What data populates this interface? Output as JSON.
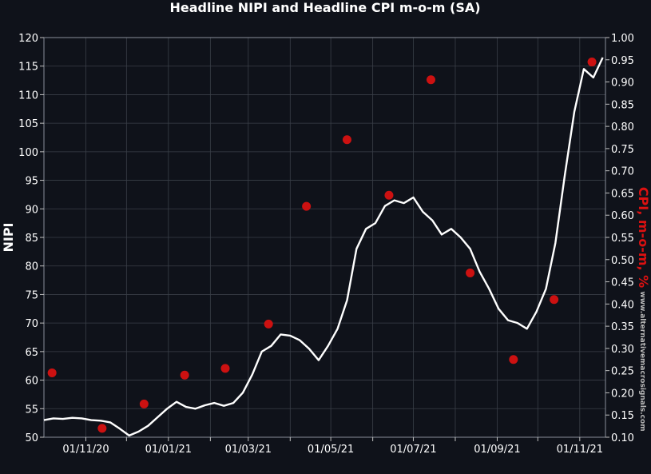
{
  "chart_data": {
    "type": "line",
    "title": "Headline NIPI and Headline CPI m-o-m (SA)",
    "ylabel_left": "NIPI",
    "ylabel_right": "CPI, m-o-m, %",
    "watermark": "www.alternativemacrosignals.com",
    "ylim_left": [
      50,
      120
    ],
    "ylim_right": [
      0.1,
      1.0
    ],
    "yticks_left": [
      "50",
      "55",
      "60",
      "65",
      "70",
      "75",
      "80",
      "85",
      "90",
      "95",
      "100",
      "105",
      "110",
      "115",
      "120"
    ],
    "yticks_right": [
      "0.10",
      "0.15",
      "0.20",
      "0.25",
      "0.30",
      "0.35",
      "0.40",
      "0.45",
      "0.50",
      "0.55",
      "0.60",
      "0.65",
      "0.70",
      "0.75",
      "0.80",
      "0.85",
      "0.90",
      "0.95",
      "1.00"
    ],
    "x_range": [
      "2020-10-01",
      "2021-11-20"
    ],
    "xticks": [
      {
        "date": "2020-11-01",
        "label": "01/11/20"
      },
      {
        "date": "2021-01-01",
        "label": "01/01/21"
      },
      {
        "date": "2021-03-01",
        "label": "01/03/21"
      },
      {
        "date": "2021-05-01",
        "label": "01/05/21"
      },
      {
        "date": "2021-07-01",
        "label": "01/07/21"
      },
      {
        "date": "2021-09-01",
        "label": "01/09/21"
      },
      {
        "date": "2021-11-01",
        "label": "01/11/21"
      }
    ],
    "grid": true,
    "colors": {
      "background": "#0f121a",
      "line": "#ffffff",
      "points": "#cc1111",
      "right_axis_label": "#dd1111",
      "grid": "#3a3f48"
    },
    "series": [
      {
        "type": "line",
        "axis": "left",
        "points": [
          [
            "2020-10-01",
            53.0
          ],
          [
            "2020-10-08",
            53.3
          ],
          [
            "2020-10-15",
            53.2
          ],
          [
            "2020-10-22",
            53.4
          ],
          [
            "2020-10-29",
            53.3
          ],
          [
            "2020-11-05",
            53.0
          ],
          [
            "2020-11-12",
            52.9
          ],
          [
            "2020-11-19",
            52.6
          ],
          [
            "2020-11-26",
            51.5
          ],
          [
            "2020-12-03",
            50.3
          ],
          [
            "2020-12-10",
            51.0
          ],
          [
            "2020-12-17",
            52.0
          ],
          [
            "2020-12-24",
            53.5
          ],
          [
            "2020-12-31",
            55.0
          ],
          [
            "2021-01-07",
            56.2
          ],
          [
            "2021-01-14",
            55.3
          ],
          [
            "2021-01-21",
            55.0
          ],
          [
            "2021-01-28",
            55.6
          ],
          [
            "2021-02-04",
            56.0
          ],
          [
            "2021-02-11",
            55.5
          ],
          [
            "2021-02-18",
            56.0
          ],
          [
            "2021-02-25",
            57.8
          ],
          [
            "2021-03-04",
            61.0
          ],
          [
            "2021-03-11",
            65.0
          ],
          [
            "2021-03-18",
            66.0
          ],
          [
            "2021-03-25",
            68.0
          ],
          [
            "2021-04-01",
            67.8
          ],
          [
            "2021-04-08",
            67.0
          ],
          [
            "2021-04-15",
            65.5
          ],
          [
            "2021-04-22",
            63.5
          ],
          [
            "2021-04-29",
            66.0
          ],
          [
            "2021-05-06",
            69.0
          ],
          [
            "2021-05-13",
            74.0
          ],
          [
            "2021-05-20",
            83.0
          ],
          [
            "2021-05-27",
            86.5
          ],
          [
            "2021-06-03",
            87.5
          ],
          [
            "2021-06-10",
            90.5
          ],
          [
            "2021-06-17",
            91.5
          ],
          [
            "2021-06-24",
            91.0
          ],
          [
            "2021-07-01",
            92.0
          ],
          [
            "2021-07-08",
            89.5
          ],
          [
            "2021-07-15",
            88.0
          ],
          [
            "2021-07-22",
            85.5
          ],
          [
            "2021-07-29",
            86.5
          ],
          [
            "2021-08-05",
            85.0
          ],
          [
            "2021-08-12",
            83.0
          ],
          [
            "2021-08-19",
            79.0
          ],
          [
            "2021-08-26",
            76.0
          ],
          [
            "2021-09-02",
            72.5
          ],
          [
            "2021-09-09",
            70.5
          ],
          [
            "2021-09-16",
            70.0
          ],
          [
            "2021-09-23",
            69.0
          ],
          [
            "2021-09-30",
            72.0
          ],
          [
            "2021-10-07",
            76.0
          ],
          [
            "2021-10-14",
            84.0
          ],
          [
            "2021-10-21",
            96.0
          ],
          [
            "2021-10-28",
            107.0
          ],
          [
            "2021-11-04",
            114.5
          ],
          [
            "2021-11-11",
            113.0
          ],
          [
            "2021-11-18",
            116.5
          ]
        ]
      },
      {
        "type": "scatter",
        "axis": "right",
        "points": [
          [
            "2020-10-07",
            0.245
          ],
          [
            "2020-11-13",
            0.12
          ],
          [
            "2020-12-14",
            0.175
          ],
          [
            "2021-01-13",
            0.24
          ],
          [
            "2021-02-12",
            0.255
          ],
          [
            "2021-03-16",
            0.355
          ],
          [
            "2021-04-13",
            0.62
          ],
          [
            "2021-05-13",
            0.77
          ],
          [
            "2021-06-13",
            0.645
          ],
          [
            "2021-07-14",
            0.905
          ],
          [
            "2021-08-12",
            0.47
          ],
          [
            "2021-09-13",
            0.275
          ],
          [
            "2021-10-13",
            0.41
          ],
          [
            "2021-11-10",
            0.945
          ]
        ]
      }
    ]
  }
}
